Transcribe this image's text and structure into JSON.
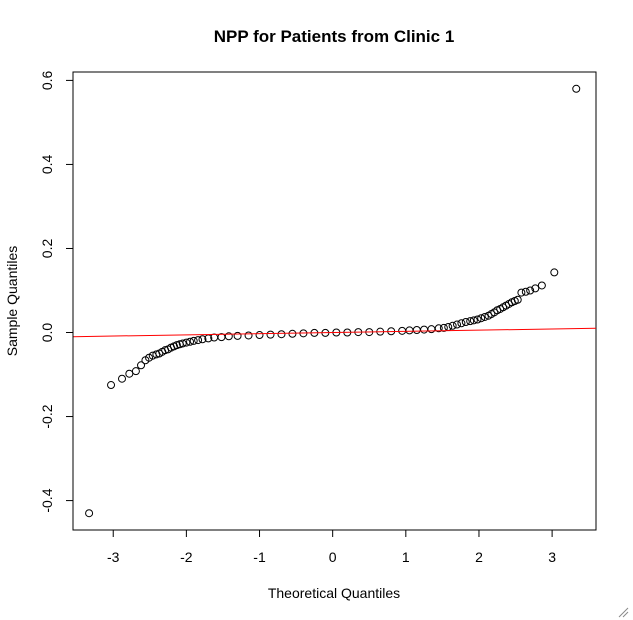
{
  "chart_data": {
    "type": "scatter",
    "title": "NPP for Patients from Clinic 1",
    "xlabel": "Theoretical Quantiles",
    "ylabel": "Sample Quantiles",
    "xlim": [
      -3.55,
      3.6
    ],
    "ylim": [
      -0.47,
      0.62
    ],
    "xticks": [
      -3,
      -2,
      -1,
      0,
      1,
      2,
      3
    ],
    "xtick_labels": [
      "-3",
      "-2",
      "-1",
      "0",
      "1",
      "2",
      "3"
    ],
    "yticks": [
      -0.4,
      -0.2,
      0.0,
      0.2,
      0.4,
      0.6
    ],
    "ytick_labels": [
      "-0.4",
      "-0.2",
      "0.0",
      "0.2",
      "0.4",
      "0.6"
    ],
    "grid": false,
    "legend": false,
    "series": [
      {
        "kind": "points",
        "marker": "open-circle",
        "color": "#000000",
        "points": [
          [
            -3.33,
            -0.43
          ],
          [
            -3.03,
            -0.125
          ],
          [
            -2.88,
            -0.11
          ],
          [
            -2.78,
            -0.098
          ],
          [
            -2.69,
            -0.092
          ],
          [
            -2.62,
            -0.078
          ],
          [
            -2.56,
            -0.066
          ],
          [
            -2.51,
            -0.06
          ],
          [
            -2.46,
            -0.055
          ],
          [
            -2.41,
            -0.052
          ],
          [
            -2.37,
            -0.05
          ],
          [
            -2.33,
            -0.046
          ],
          [
            -2.29,
            -0.042
          ],
          [
            -2.25,
            -0.04
          ],
          [
            -2.21,
            -0.036
          ],
          [
            -2.17,
            -0.033
          ],
          [
            -2.13,
            -0.03
          ],
          [
            -2.09,
            -0.028
          ],
          [
            -2.05,
            -0.026
          ],
          [
            -2.0,
            -0.024
          ],
          [
            -1.95,
            -0.022
          ],
          [
            -1.9,
            -0.02
          ],
          [
            -1.84,
            -0.018
          ],
          [
            -1.78,
            -0.016
          ],
          [
            -1.7,
            -0.014
          ],
          [
            -1.62,
            -0.012
          ],
          [
            -1.52,
            -0.011
          ],
          [
            -1.42,
            -0.009
          ],
          [
            -1.3,
            -0.008
          ],
          [
            -1.15,
            -0.007
          ],
          [
            -1.0,
            -0.006
          ],
          [
            -0.85,
            -0.005
          ],
          [
            -0.7,
            -0.004
          ],
          [
            -0.55,
            -0.003
          ],
          [
            -0.4,
            -0.002
          ],
          [
            -0.25,
            -0.001
          ],
          [
            -0.1,
            -0.001
          ],
          [
            0.05,
            0.0
          ],
          [
            0.2,
            0.0
          ],
          [
            0.35,
            0.001
          ],
          [
            0.5,
            0.001
          ],
          [
            0.65,
            0.002
          ],
          [
            0.8,
            0.003
          ],
          [
            0.95,
            0.004
          ],
          [
            1.05,
            0.005
          ],
          [
            1.15,
            0.006
          ],
          [
            1.25,
            0.007
          ],
          [
            1.35,
            0.008
          ],
          [
            1.45,
            0.01
          ],
          [
            1.52,
            0.011
          ],
          [
            1.58,
            0.013
          ],
          [
            1.64,
            0.016
          ],
          [
            1.7,
            0.019
          ],
          [
            1.76,
            0.022
          ],
          [
            1.82,
            0.025
          ],
          [
            1.88,
            0.027
          ],
          [
            1.93,
            0.029
          ],
          [
            1.98,
            0.031
          ],
          [
            2.03,
            0.034
          ],
          [
            2.08,
            0.037
          ],
          [
            2.13,
            0.04
          ],
          [
            2.17,
            0.044
          ],
          [
            2.21,
            0.048
          ],
          [
            2.25,
            0.053
          ],
          [
            2.29,
            0.056
          ],
          [
            2.33,
            0.06
          ],
          [
            2.37,
            0.064
          ],
          [
            2.41,
            0.068
          ],
          [
            2.45,
            0.072
          ],
          [
            2.49,
            0.075
          ],
          [
            2.53,
            0.078
          ],
          [
            2.58,
            0.095
          ],
          [
            2.64,
            0.097
          ],
          [
            2.7,
            0.1
          ],
          [
            2.77,
            0.105
          ],
          [
            2.86,
            0.112
          ],
          [
            3.03,
            0.143
          ],
          [
            3.33,
            0.58
          ]
        ]
      },
      {
        "kind": "reference-line",
        "color": "#ff0000",
        "intercept": 0.0,
        "slope": 0.0028
      }
    ]
  }
}
